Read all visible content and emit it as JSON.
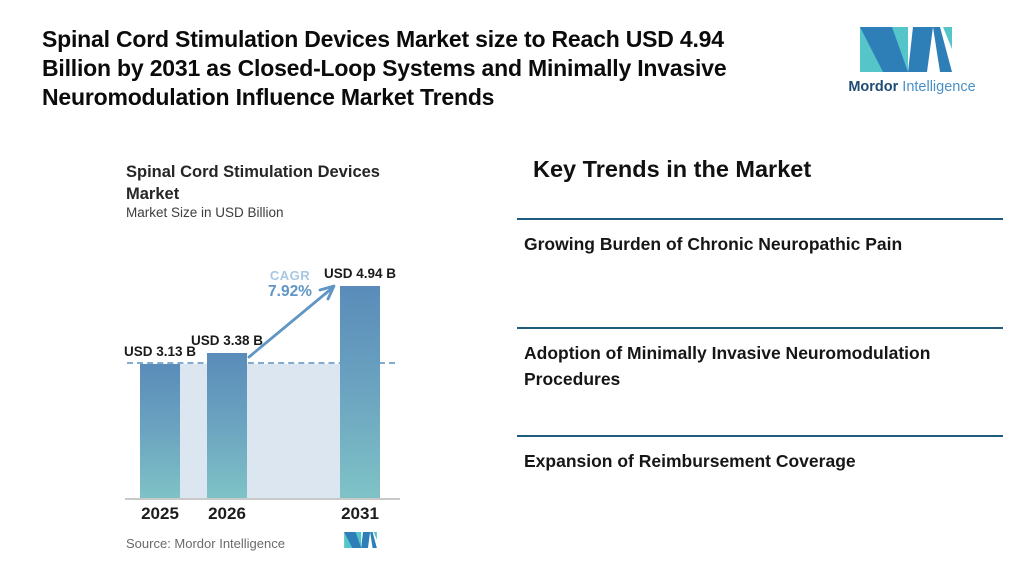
{
  "header": {
    "title_lines": [
      "Spinal Cord Stimulation Devices Market size to Reach USD 4.94",
      "Billion by 2031 as Closed-Loop Systems and Minimally Invasive",
      "Neuromodulation Influence Market Trends"
    ],
    "brand": {
      "name_bold": "Mordor",
      "name_light": "Intelligence"
    }
  },
  "chart": {
    "title_lines": [
      "Spinal Cord Stimulation Devices",
      "Market"
    ],
    "subtitle": "Market Size in USD Billion",
    "cagr_label": "CAGR",
    "cagr_value": "7.92%",
    "source": "Source: Mordor Intelligence"
  },
  "chart_data": {
    "type": "bar",
    "title": "Spinal Cord Stimulation Devices Market",
    "subtitle": "Market Size in USD Billion",
    "unit": "USD Billion",
    "categories": [
      "2025",
      "2026",
      "2031"
    ],
    "values": [
      3.13,
      3.38,
      4.94
    ],
    "bar_labels": [
      "USD 3.13 B",
      "USD 3.38 B",
      "USD 4.94 B"
    ],
    "cagr_pct": 7.92,
    "baseline_value": 3.13,
    "ylim": [
      0,
      5.4
    ],
    "grid": false,
    "legend": "none",
    "annotations": [
      "CAGR 7.92%",
      "dashed reference line at 2025 value"
    ]
  },
  "trends": {
    "heading": "Key Trends in the Market",
    "items": [
      {
        "label": "Growing Burden of Chronic Neuropathic Pain"
      },
      {
        "label": "Adoption of Minimally Invasive Neuromodulation Procedures"
      },
      {
        "label": "Expansion of Reimbursement Coverage"
      }
    ]
  },
  "colors": {
    "bar_gradient_top": "#5a8cb9",
    "bar_gradient_bottom": "#7fc3c6",
    "plot_background": "#dce6f0",
    "dashed_line": "#82abd1",
    "arrow_blue": "#5f96c5",
    "cagr_label_blue": "#a7c8e3",
    "trend_rule": "#1e5b7d",
    "axis_gray": "#c9c9c9",
    "brand_blue": "#2e7fb7",
    "brand_teal": "#56c5c9",
    "brand_text_dark": "#1e4a73",
    "source_gray": "#6a6a6a"
  }
}
